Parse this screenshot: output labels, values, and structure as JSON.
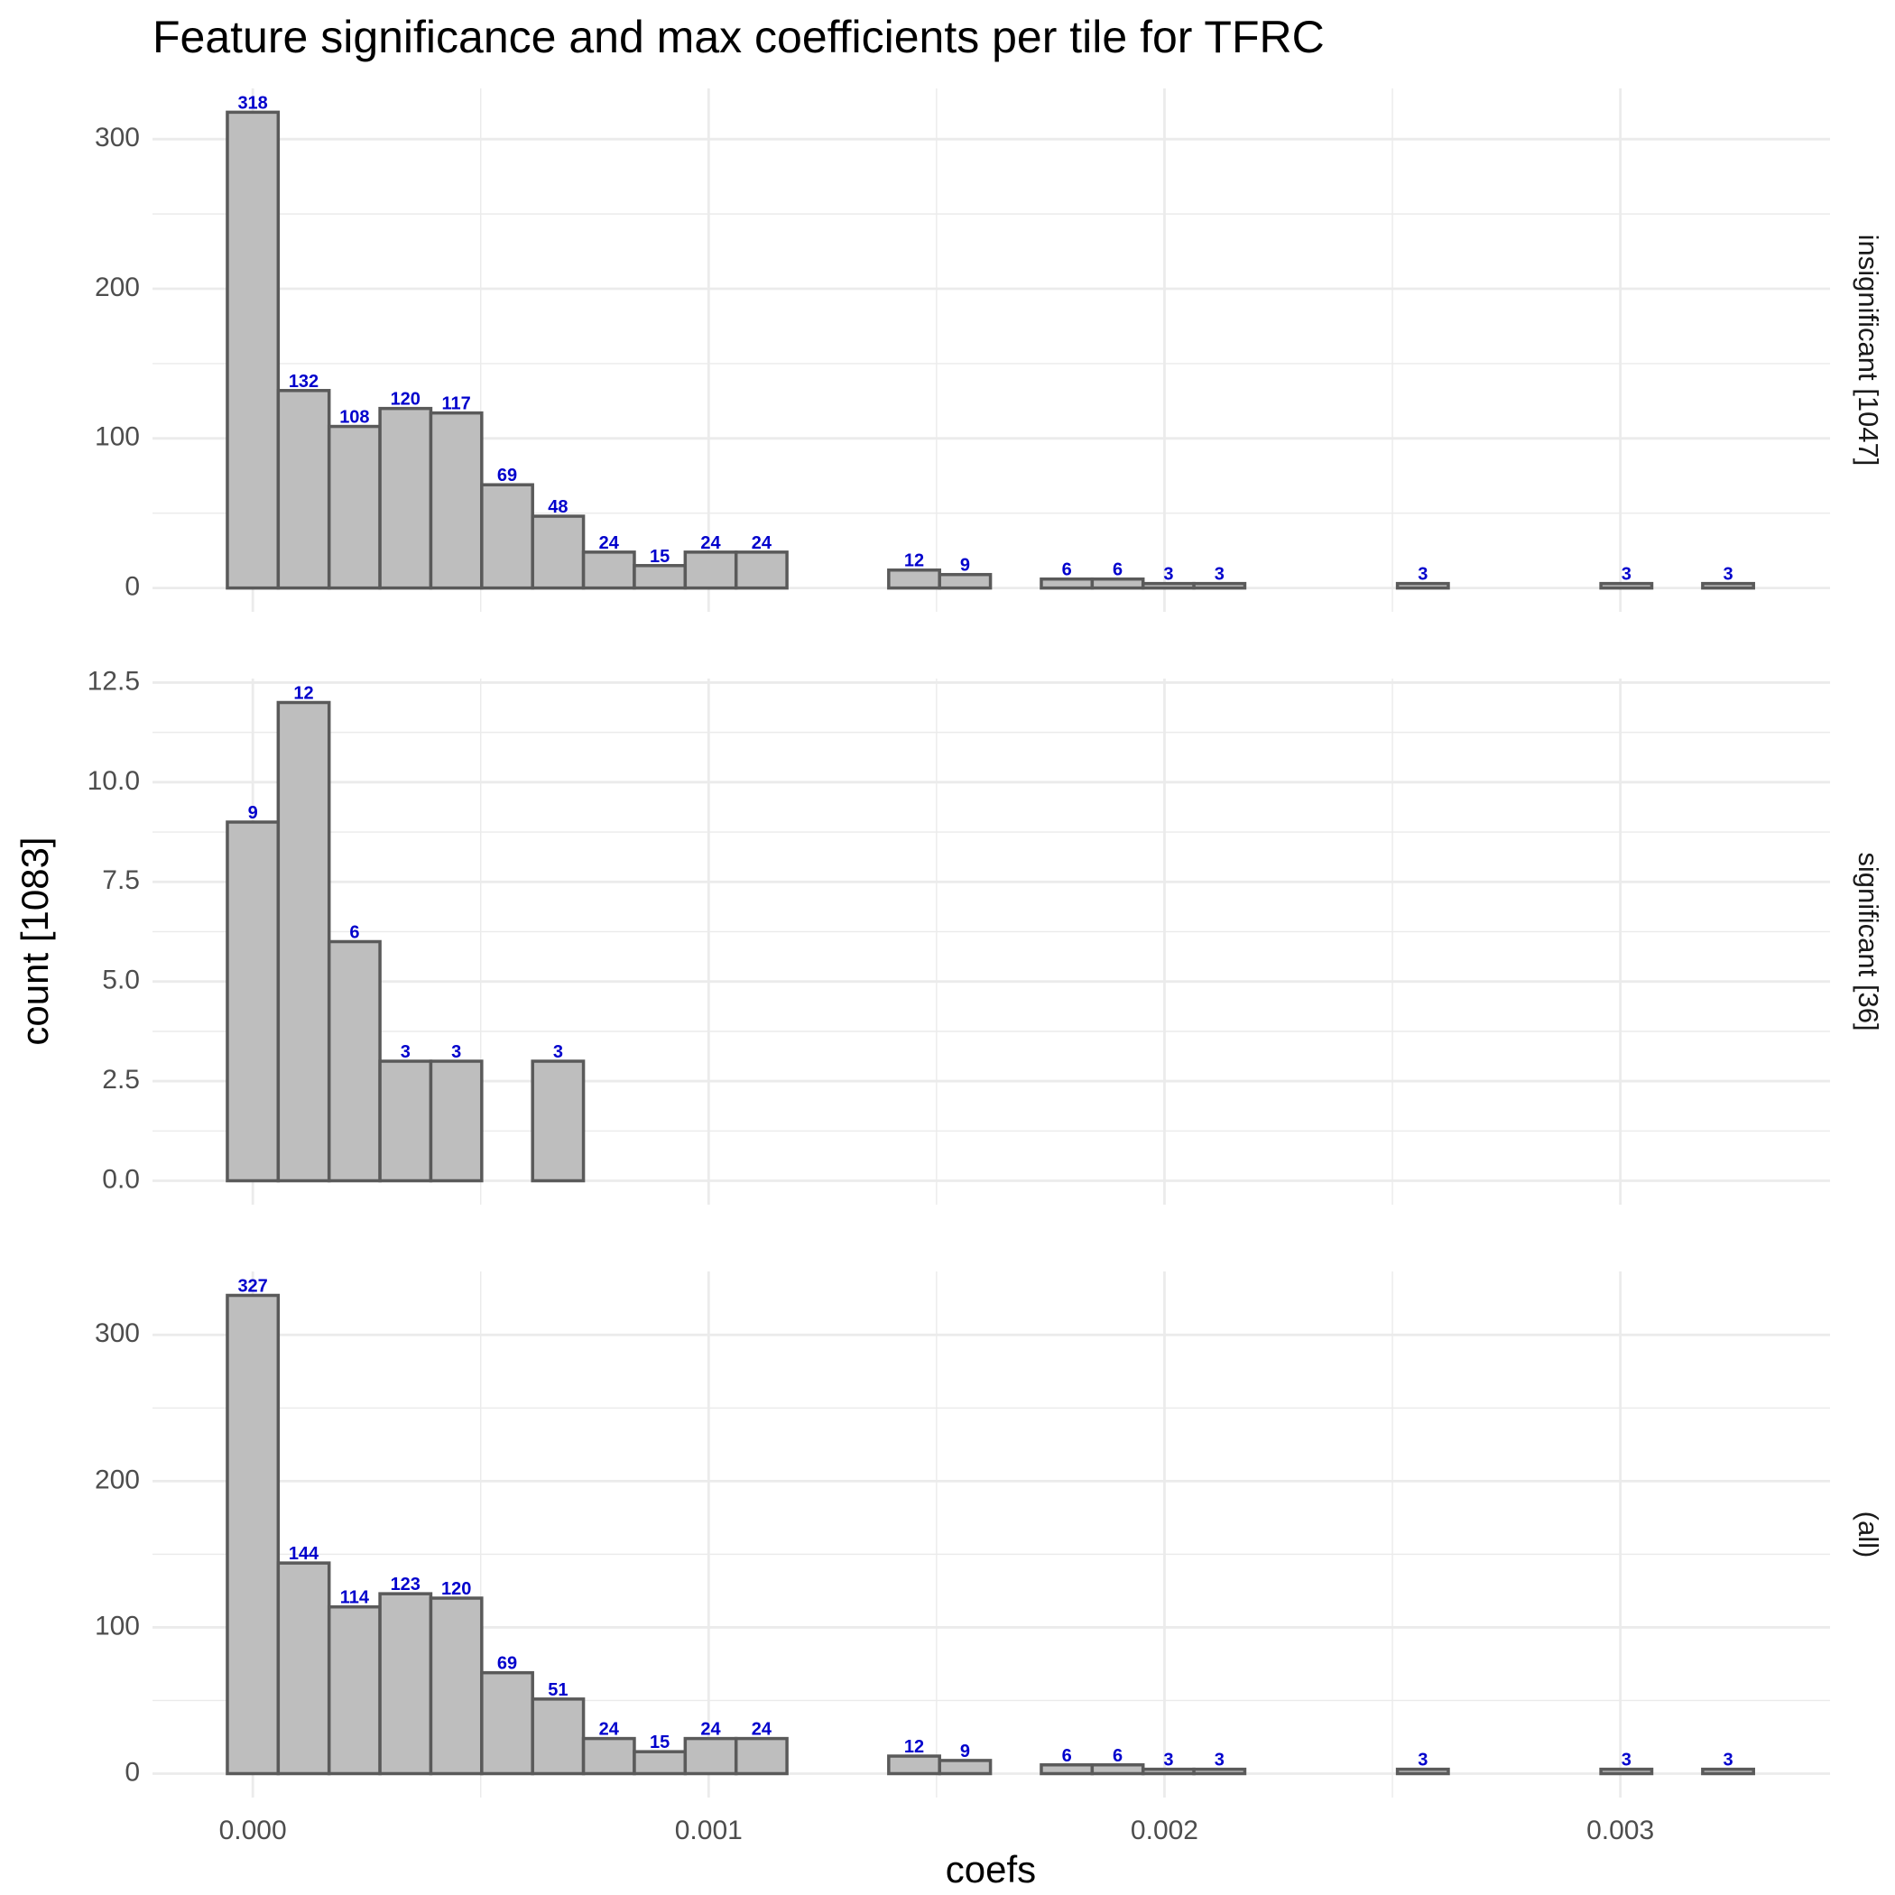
{
  "chart_data": {
    "type": "histogram",
    "title": "Feature significance and max coefficients per tile for TFRC",
    "x_label": "coefs",
    "y_label": "count [1083]",
    "bins": [
      -5.58e-05,
      5.58e-05,
      0.0001674,
      0.000279,
      0.0003906,
      0.0005022,
      0.0006138,
      0.0007254,
      0.000837,
      0.0009486,
      0.0010602,
      0.0011718,
      0.0012834,
      0.001395,
      0.0015066,
      0.0016182,
      0.0017298,
      0.0018414,
      0.001953,
      0.0020646,
      0.0021762,
      0.0022878,
      0.0023994,
      0.002511,
      0.0026226,
      0.0027342,
      0.0028458,
      0.0029574,
      0.003069,
      0.0031806,
      0.0032922
    ],
    "xlim": [
      -0.00022,
      0.00346
    ],
    "xticks": [
      {
        "value": 0,
        "label": "0.000"
      },
      {
        "value": 0.001,
        "label": "0.001"
      },
      {
        "value": 0.002,
        "label": "0.002"
      },
      {
        "value": 0.003,
        "label": "0.003"
      }
    ],
    "x_minor_grid": [
      0.0005,
      0.0015,
      0.0025
    ],
    "color": "#bebebe",
    "edge_color": "#5a5a5a",
    "label_color": "#0000cc",
    "grid": true,
    "facets": [
      {
        "label": "insignificant [1047]",
        "values": [
          318,
          132,
          108,
          120,
          117,
          69,
          48,
          24,
          15,
          24,
          24,
          0,
          0,
          12,
          9,
          0,
          6,
          6,
          3,
          3,
          0,
          0,
          0,
          3,
          0,
          0,
          0,
          3,
          0,
          3
        ],
        "ylim": [
          -15.9,
          333.9
        ],
        "yticks": [
          0,
          100,
          200,
          300
        ],
        "y_minor_grid": [
          50,
          150,
          250
        ]
      },
      {
        "label": "significant [36]",
        "values": [
          9,
          12,
          6,
          3,
          3,
          0,
          3,
          0,
          0,
          0,
          0,
          0,
          0,
          0,
          0,
          0,
          0,
          0,
          0,
          0,
          0,
          0,
          0,
          0,
          0,
          0,
          0,
          0,
          0,
          0
        ],
        "ylim": [
          -0.6,
          12.6
        ],
        "yticks": [
          {
            "value": 0,
            "label": "0.0"
          },
          2.5,
          {
            "value": 5,
            "label": "5.0"
          },
          7.5,
          {
            "value": 10,
            "label": "10.0"
          },
          12.5
        ],
        "y_minor_grid": [
          1.25,
          3.75,
          6.25,
          8.75,
          11.25
        ]
      },
      {
        "label": "(all)",
        "values": [
          327,
          144,
          114,
          123,
          120,
          69,
          51,
          24,
          15,
          24,
          24,
          0,
          0,
          12,
          9,
          0,
          6,
          6,
          3,
          3,
          0,
          0,
          0,
          3,
          0,
          0,
          0,
          3,
          0,
          3
        ],
        "ylim": [
          -16.35,
          343.35
        ],
        "yticks": [
          0,
          100,
          200,
          300
        ],
        "y_minor_grid": [
          50,
          150,
          250
        ]
      }
    ]
  }
}
